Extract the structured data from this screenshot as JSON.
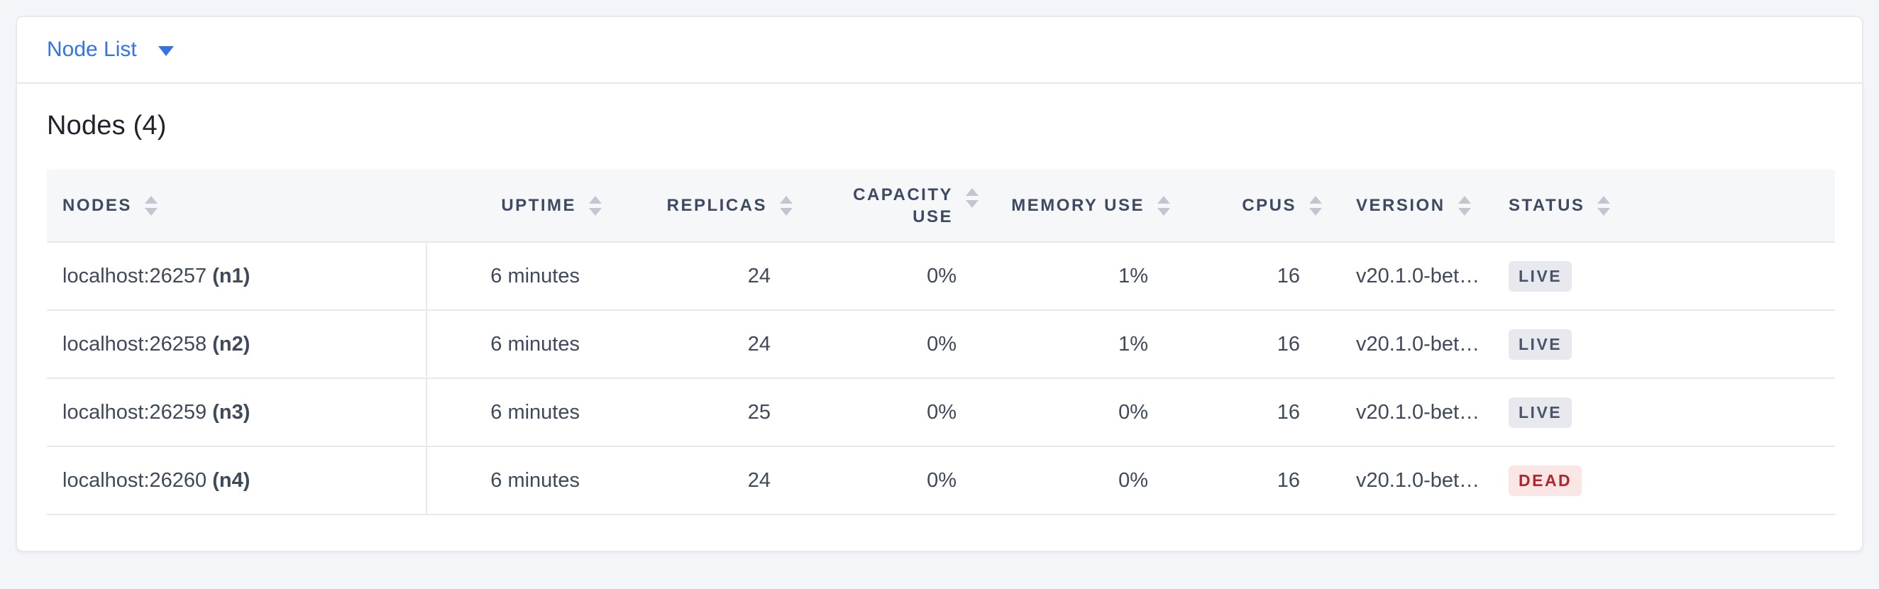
{
  "toolbar": {
    "view_selector_label": "Node List"
  },
  "panel": {
    "title": "Nodes (4)"
  },
  "table": {
    "columns": [
      {
        "key": "nodes",
        "label": "NODES",
        "align": "left",
        "sortable": true
      },
      {
        "key": "uptime",
        "label": "UPTIME",
        "align": "right",
        "sortable": true
      },
      {
        "key": "replicas",
        "label": "REPLICAS",
        "align": "right",
        "sortable": true
      },
      {
        "key": "capacity_use",
        "label": "CAPACITY USE",
        "align": "right",
        "sortable": true
      },
      {
        "key": "memory_use",
        "label": "MEMORY USE",
        "align": "right",
        "sortable": true
      },
      {
        "key": "cpus",
        "label": "CPUS",
        "align": "right",
        "sortable": true
      },
      {
        "key": "version",
        "label": "VERSION",
        "align": "left",
        "sortable": true
      },
      {
        "key": "status",
        "label": "STATUS",
        "align": "left",
        "sortable": true
      }
    ],
    "rows": [
      {
        "address": "localhost:26257",
        "node_id": "(n1)",
        "uptime": "6 minutes",
        "replicas": "24",
        "capacity_use": "0%",
        "memory_use": "1%",
        "cpus": "16",
        "version": "v20.1.0-bet…",
        "status": "LIVE"
      },
      {
        "address": "localhost:26258",
        "node_id": "(n2)",
        "uptime": "6 minutes",
        "replicas": "24",
        "capacity_use": "0%",
        "memory_use": "1%",
        "cpus": "16",
        "version": "v20.1.0-bet…",
        "status": "LIVE"
      },
      {
        "address": "localhost:26259",
        "node_id": "(n3)",
        "uptime": "6 minutes",
        "replicas": "25",
        "capacity_use": "0%",
        "memory_use": "0%",
        "cpus": "16",
        "version": "v20.1.0-bet…",
        "status": "LIVE"
      },
      {
        "address": "localhost:26260",
        "node_id": "(n4)",
        "uptime": "6 minutes",
        "replicas": "24",
        "capacity_use": "0%",
        "memory_use": "0%",
        "cpus": "16",
        "version": "v20.1.0-bet…",
        "status": "DEAD"
      }
    ]
  },
  "colors": {
    "accent_blue": "#3572e3",
    "live_bg": "#e7e9ee",
    "live_text": "#4a5568",
    "dead_bg": "#fbe6e6",
    "dead_text": "#b0262c"
  }
}
